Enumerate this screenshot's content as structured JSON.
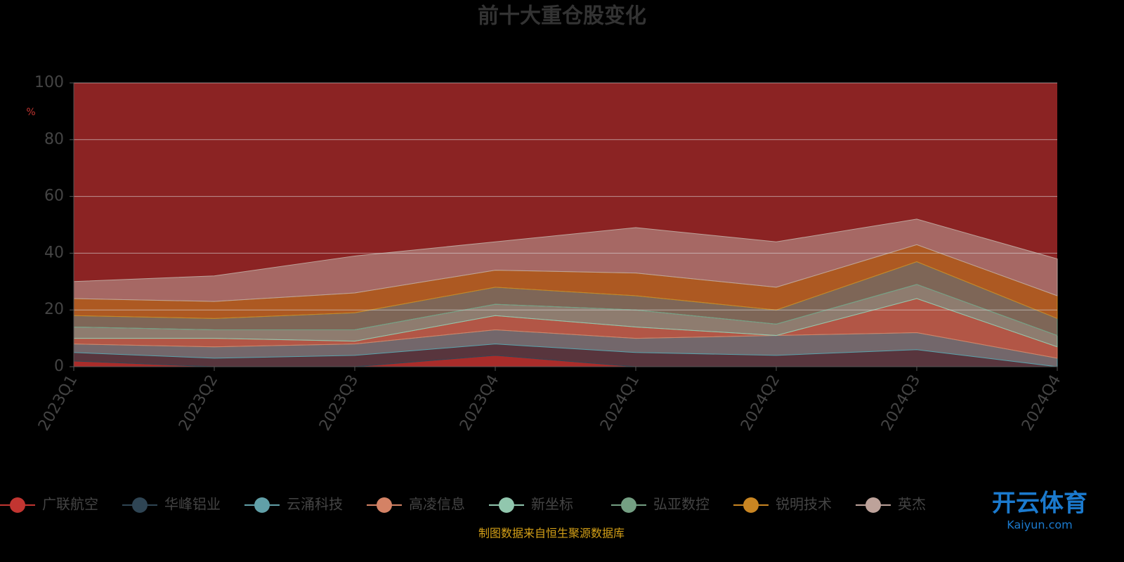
{
  "chart_data": {
    "type": "stacked_area",
    "title": "前十大重仓股变化",
    "y_label": "%",
    "categories": [
      "2023Q1",
      "2023Q2",
      "2023Q3",
      "2023Q4",
      "2024Q1",
      "2024Q2",
      "2024Q3",
      "2024Q4"
    ],
    "series": [
      {
        "name": "广联航空",
        "color": "#c23531",
        "values": [
          2,
          0,
          0,
          4,
          0,
          0,
          0,
          0
        ]
      },
      {
        "name": "华峰铝业",
        "color": "#2f4554",
        "values": [
          3,
          3,
          4,
          4,
          5,
          4,
          6,
          0
        ]
      },
      {
        "name": "云涌科技",
        "color": "#61a0a8",
        "values": [
          3,
          4,
          4,
          5,
          5,
          7,
          6,
          3
        ]
      },
      {
        "name": "高凌信息",
        "color": "#d48265",
        "values": [
          2,
          3,
          1,
          5,
          4,
          0,
          12,
          4
        ]
      },
      {
        "name": "新坐标",
        "color": "#91c7ae",
        "values": [
          4,
          3,
          4,
          4,
          6,
          4,
          5,
          4
        ]
      },
      {
        "name": "弘亚数控",
        "color": "#749f83",
        "values": [
          4,
          4,
          6,
          6,
          5,
          5,
          8,
          6
        ]
      },
      {
        "name": "锐明技术",
        "color": "#ca8622",
        "values": [
          6,
          6,
          7,
          6,
          8,
          8,
          6,
          8
        ]
      },
      {
        "name": "英杰",
        "color": "#bda29a",
        "values": [
          6,
          9,
          13,
          10,
          16,
          16,
          9,
          13
        ]
      }
    ],
    "ylim": [
      0,
      100
    ],
    "yticks": [
      0,
      20,
      40,
      60,
      80,
      100
    ],
    "grid": true,
    "plot_background": "#8b2323",
    "source": "制图数据来自恒生聚源数据库",
    "watermark": [
      "开云体育",
      "Kaiyun.com"
    ]
  }
}
